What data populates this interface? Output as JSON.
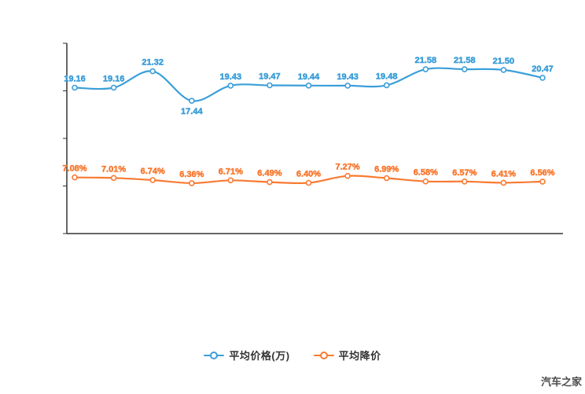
{
  "page": {
    "watermark": "汽车之家"
  },
  "chart_data": {
    "type": "line",
    "title": "",
    "smooth": true,
    "grid": false,
    "legend_position": "bottom",
    "x_tick_labels": [],
    "ylim_left": [
      0,
      25
    ],
    "ylim_right": [
      0,
      24
    ],
    "series": [
      {
        "name": "平均价格(万)",
        "color": "#3b9fd9",
        "label_suffix": "",
        "values": [
          19.16,
          19.16,
          21.32,
          17.44,
          19.43,
          19.47,
          19.44,
          19.43,
          19.48,
          21.58,
          21.58,
          21.5,
          20.47
        ]
      },
      {
        "name": "平均降价",
        "color": "#f97a32",
        "label_suffix": "%",
        "values": [
          7.08,
          7.01,
          6.74,
          6.36,
          6.71,
          6.49,
          6.4,
          7.27,
          6.99,
          6.58,
          6.57,
          6.41,
          6.56
        ]
      }
    ]
  }
}
